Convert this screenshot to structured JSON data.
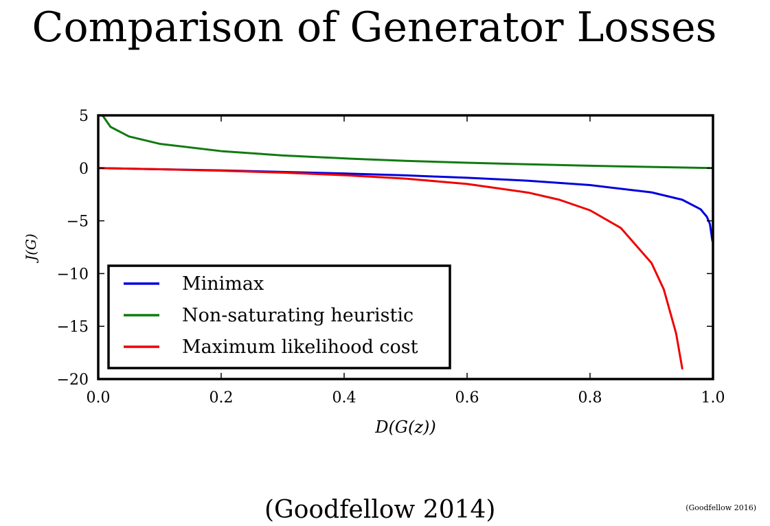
{
  "slide": {
    "title": "Comparison of Generator Losses",
    "citation": "(Goodfellow 2014)",
    "footer_citation": "(Goodfellow 2016)"
  },
  "chart_data": {
    "type": "line",
    "title": "",
    "xlabel": "D(G(z))",
    "ylabel": "J(G)",
    "xlim": [
      0.0,
      1.0
    ],
    "ylim": [
      -20,
      5
    ],
    "xticks": [
      0.0,
      0.2,
      0.4,
      0.6,
      0.8,
      1.0
    ],
    "xtick_labels": [
      "0.0",
      "0.2",
      "0.4",
      "0.6",
      "0.8",
      "1.0"
    ],
    "yticks": [
      5,
      0,
      -5,
      -10,
      -15,
      -20
    ],
    "ytick_labels": [
      "5",
      "0",
      "−5",
      "−10",
      "−15",
      "−20"
    ],
    "grid": false,
    "legend_position": "lower-left",
    "series": [
      {
        "name": "Minimax",
        "color": "#0000dd",
        "x": [
          0.0,
          0.1,
          0.2,
          0.3,
          0.4,
          0.5,
          0.6,
          0.7,
          0.8,
          0.9,
          0.95,
          0.98,
          0.99,
          0.995,
          0.999
        ],
        "y": [
          0.0,
          -0.11,
          -0.22,
          -0.36,
          -0.51,
          -0.69,
          -0.92,
          -1.2,
          -1.61,
          -2.3,
          -3.0,
          -3.91,
          -4.61,
          -5.3,
          -6.91
        ]
      },
      {
        "name": "Non-saturating heuristic",
        "color": "#107a10",
        "x": [
          0.007,
          0.02,
          0.05,
          0.1,
          0.2,
          0.3,
          0.4,
          0.5,
          0.6,
          0.7,
          0.8,
          0.9,
          1.0
        ],
        "y": [
          5.0,
          3.91,
          3.0,
          2.3,
          1.61,
          1.2,
          0.92,
          0.69,
          0.51,
          0.36,
          0.22,
          0.11,
          0.0
        ]
      },
      {
        "name": "Maximum likelihood cost",
        "color": "#ee0000",
        "x": [
          0.0,
          0.1,
          0.2,
          0.3,
          0.4,
          0.5,
          0.6,
          0.7,
          0.75,
          0.8,
          0.85,
          0.9,
          0.92,
          0.94,
          0.95
        ],
        "y": [
          0.0,
          -0.11,
          -0.25,
          -0.43,
          -0.67,
          -1.0,
          -1.5,
          -2.33,
          -3.0,
          -4.0,
          -5.67,
          -9.0,
          -11.5,
          -15.67,
          -19.0
        ]
      }
    ]
  }
}
